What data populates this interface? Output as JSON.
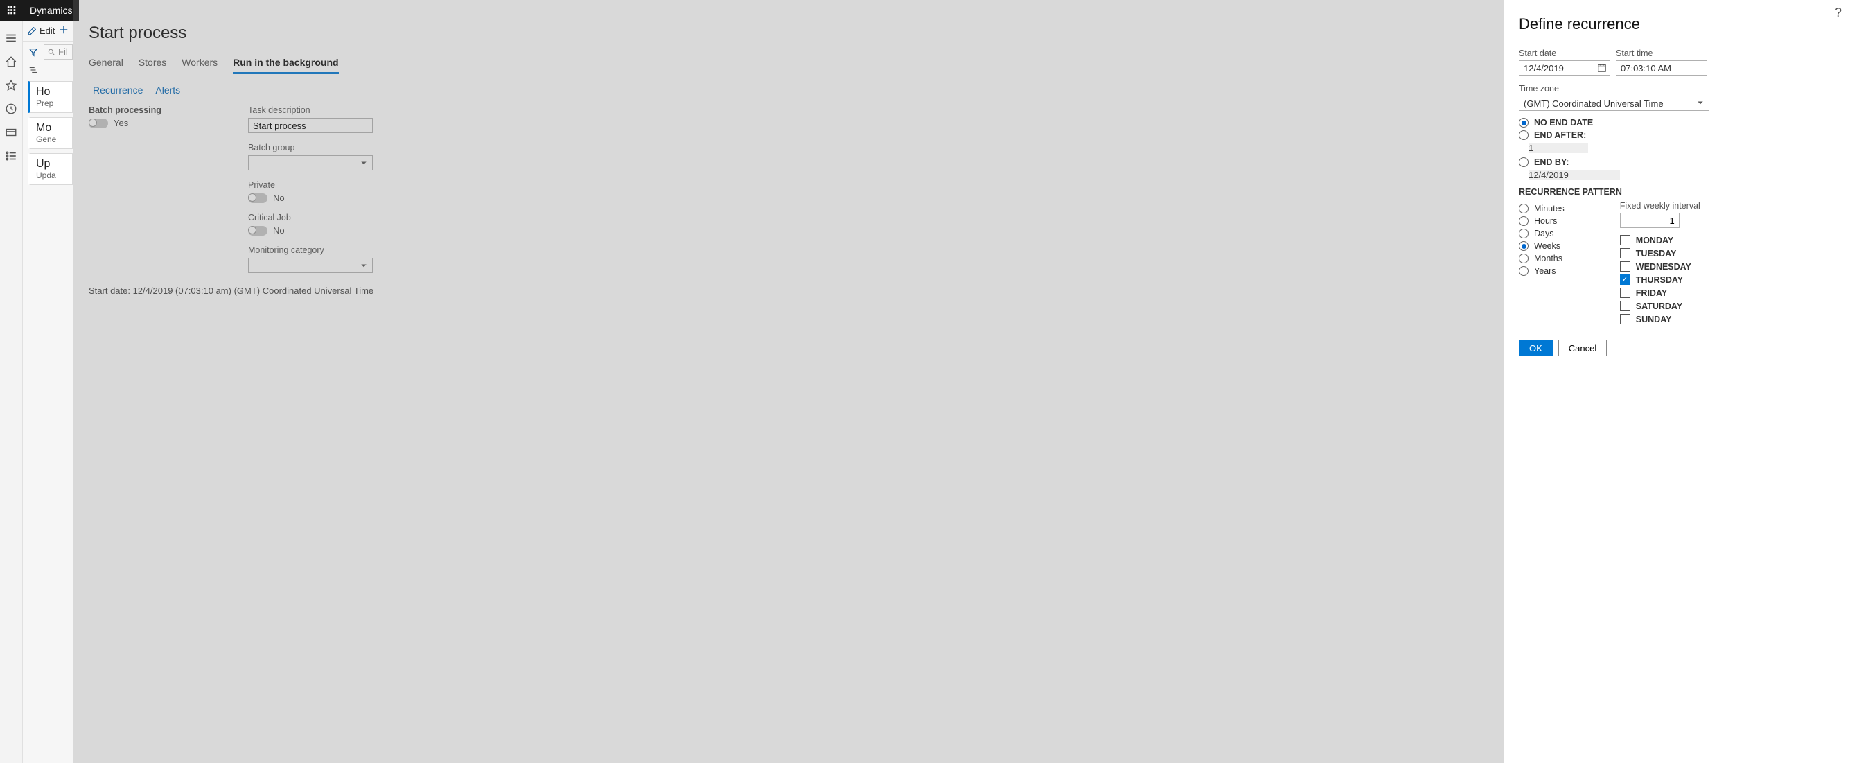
{
  "topbar": {
    "brand": "Dynamics"
  },
  "navcol": {
    "edit_label": "Edit",
    "filter_placeholder": "Fil",
    "cards": [
      {
        "title": "Ho",
        "sub": "Prep"
      },
      {
        "title": "Mo",
        "sub": "Gene"
      },
      {
        "title": "Up",
        "sub": "Upda"
      }
    ]
  },
  "main": {
    "title": "Start process",
    "tabs": [
      "General",
      "Stores",
      "Workers",
      "Run in the background"
    ],
    "active_tab": 3,
    "subtabs": [
      "Recurrence",
      "Alerts"
    ],
    "batch_section_label": "Batch processing",
    "batch_toggle": "Yes",
    "task_desc_label": "Task description",
    "task_desc_value": "Start process",
    "batch_group_label": "Batch group",
    "private_label": "Private",
    "private_toggle": "No",
    "critical_label": "Critical Job",
    "critical_toggle": "No",
    "monitoring_label": "Monitoring category",
    "footnote": "Start date: 12/4/2019 (07:03:10 am) (GMT) Coordinated Universal Time"
  },
  "panel": {
    "title": "Define recurrence",
    "start_date_label": "Start date",
    "start_date": "12/4/2019",
    "start_time_label": "Start time",
    "start_time": "07:03:10 AM",
    "tz_label": "Time zone",
    "tz_value": "(GMT) Coordinated Universal Time",
    "no_end_label": "NO END DATE",
    "end_after_label": "END AFTER:",
    "end_after_value": "1",
    "end_by_label": "END BY:",
    "end_by_value": "12/4/2019",
    "end_selected": "no_end",
    "pattern_title": "RECURRENCE PATTERN",
    "units": [
      "Minutes",
      "Hours",
      "Days",
      "Weeks",
      "Months",
      "Years"
    ],
    "unit_selected": 3,
    "interval_label": "Fixed weekly interval",
    "interval_value": "1",
    "days": [
      "MONDAY",
      "TUESDAY",
      "WEDNESDAY",
      "THURSDAY",
      "FRIDAY",
      "SATURDAY",
      "SUNDAY"
    ],
    "days_selected": [
      false,
      false,
      false,
      true,
      false,
      false,
      false
    ],
    "ok_label": "OK",
    "cancel_label": "Cancel"
  }
}
